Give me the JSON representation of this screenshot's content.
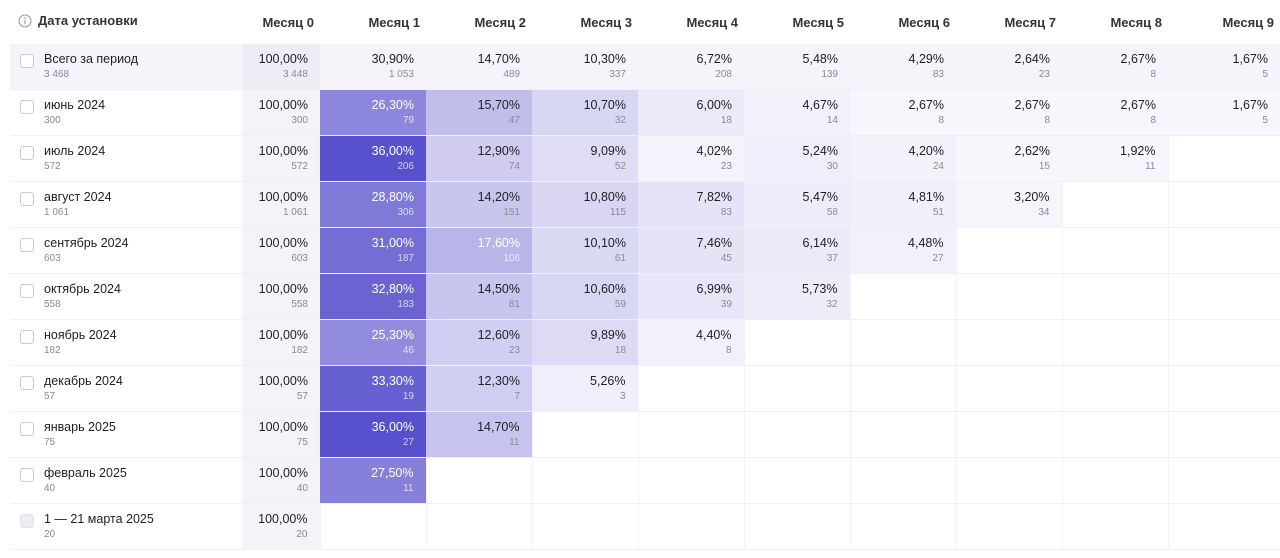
{
  "header": {
    "first_col": "Дата установки",
    "months": [
      "Месяц 0",
      "Месяц 1",
      "Месяц 2",
      "Месяц 3",
      "Месяц 4",
      "Месяц 5",
      "Месяц 6",
      "Месяц 7",
      "Месяц 8",
      "Месяц 9"
    ]
  },
  "colors": {
    "shade_base_rgb": [
      88,
      80,
      204
    ],
    "empty_cell": "#ffffff",
    "total_row": "#f4f4fa"
  },
  "total": {
    "label": "Всего за период",
    "count": "3 468",
    "cells": [
      {
        "pct": "100,00%",
        "cnt": "3 448"
      },
      {
        "pct": "30,90%",
        "cnt": "1 053"
      },
      {
        "pct": "14,70%",
        "cnt": "489"
      },
      {
        "pct": "10,30%",
        "cnt": "337"
      },
      {
        "pct": "6,72%",
        "cnt": "208"
      },
      {
        "pct": "5,48%",
        "cnt": "139"
      },
      {
        "pct": "4,29%",
        "cnt": "83"
      },
      {
        "pct": "2,64%",
        "cnt": "23"
      },
      {
        "pct": "2,67%",
        "cnt": "8"
      },
      {
        "pct": "1,67%",
        "cnt": "5"
      }
    ]
  },
  "rows": [
    {
      "label": "июнь 2024",
      "count": "300",
      "cells": [
        {
          "pct": "100,00%",
          "cnt": "300"
        },
        {
          "pct": "26,30%",
          "cnt": "79"
        },
        {
          "pct": "15,70%",
          "cnt": "47"
        },
        {
          "pct": "10,70%",
          "cnt": "32"
        },
        {
          "pct": "6,00%",
          "cnt": "18"
        },
        {
          "pct": "4,67%",
          "cnt": "14"
        },
        {
          "pct": "2,67%",
          "cnt": "8"
        },
        {
          "pct": "2,67%",
          "cnt": "8"
        },
        {
          "pct": "2,67%",
          "cnt": "8"
        },
        {
          "pct": "1,67%",
          "cnt": "5"
        }
      ]
    },
    {
      "label": "июль 2024",
      "count": "572",
      "cells": [
        {
          "pct": "100,00%",
          "cnt": "572"
        },
        {
          "pct": "36,00%",
          "cnt": "206"
        },
        {
          "pct": "12,90%",
          "cnt": "74"
        },
        {
          "pct": "9,09%",
          "cnt": "52"
        },
        {
          "pct": "4,02%",
          "cnt": "23"
        },
        {
          "pct": "5,24%",
          "cnt": "30"
        },
        {
          "pct": "4,20%",
          "cnt": "24"
        },
        {
          "pct": "2,62%",
          "cnt": "15"
        },
        {
          "pct": "1,92%",
          "cnt": "11"
        }
      ]
    },
    {
      "label": "август 2024",
      "count": "1 061",
      "cells": [
        {
          "pct": "100,00%",
          "cnt": "1 061"
        },
        {
          "pct": "28,80%",
          "cnt": "306"
        },
        {
          "pct": "14,20%",
          "cnt": "151"
        },
        {
          "pct": "10,80%",
          "cnt": "115"
        },
        {
          "pct": "7,82%",
          "cnt": "83"
        },
        {
          "pct": "5,47%",
          "cnt": "58"
        },
        {
          "pct": "4,81%",
          "cnt": "51"
        },
        {
          "pct": "3,20%",
          "cnt": "34"
        }
      ]
    },
    {
      "label": "сентябрь 2024",
      "count": "603",
      "cells": [
        {
          "pct": "100,00%",
          "cnt": "603"
        },
        {
          "pct": "31,00%",
          "cnt": "187"
        },
        {
          "pct": "17,60%",
          "cnt": "106"
        },
        {
          "pct": "10,10%",
          "cnt": "61"
        },
        {
          "pct": "7,46%",
          "cnt": "45"
        },
        {
          "pct": "6,14%",
          "cnt": "37"
        },
        {
          "pct": "4,48%",
          "cnt": "27"
        }
      ]
    },
    {
      "label": "октябрь 2024",
      "count": "558",
      "cells": [
        {
          "pct": "100,00%",
          "cnt": "558"
        },
        {
          "pct": "32,80%",
          "cnt": "183"
        },
        {
          "pct": "14,50%",
          "cnt": "81"
        },
        {
          "pct": "10,60%",
          "cnt": "59"
        },
        {
          "pct": "6,99%",
          "cnt": "39"
        },
        {
          "pct": "5,73%",
          "cnt": "32"
        }
      ]
    },
    {
      "label": "ноябрь 2024",
      "count": "182",
      "cells": [
        {
          "pct": "100,00%",
          "cnt": "182"
        },
        {
          "pct": "25,30%",
          "cnt": "46"
        },
        {
          "pct": "12,60%",
          "cnt": "23"
        },
        {
          "pct": "9,89%",
          "cnt": "18"
        },
        {
          "pct": "4,40%",
          "cnt": "8"
        }
      ]
    },
    {
      "label": "декабрь 2024",
      "count": "57",
      "cells": [
        {
          "pct": "100,00%",
          "cnt": "57"
        },
        {
          "pct": "33,30%",
          "cnt": "19"
        },
        {
          "pct": "12,30%",
          "cnt": "7"
        },
        {
          "pct": "5,26%",
          "cnt": "3"
        }
      ]
    },
    {
      "label": "январь 2025",
      "count": "75",
      "cells": [
        {
          "pct": "100,00%",
          "cnt": "75"
        },
        {
          "pct": "36,00%",
          "cnt": "27"
        },
        {
          "pct": "14,70%",
          "cnt": "11"
        }
      ]
    },
    {
      "label": "февраль 2025",
      "count": "40",
      "cells": [
        {
          "pct": "100,00%",
          "cnt": "40"
        },
        {
          "pct": "27,50%",
          "cnt": "11"
        }
      ]
    },
    {
      "label": "1 — 21 марта 2025",
      "count": "20",
      "disabled": true,
      "cells": [
        {
          "pct": "100,00%",
          "cnt": "20"
        }
      ]
    }
  ]
}
